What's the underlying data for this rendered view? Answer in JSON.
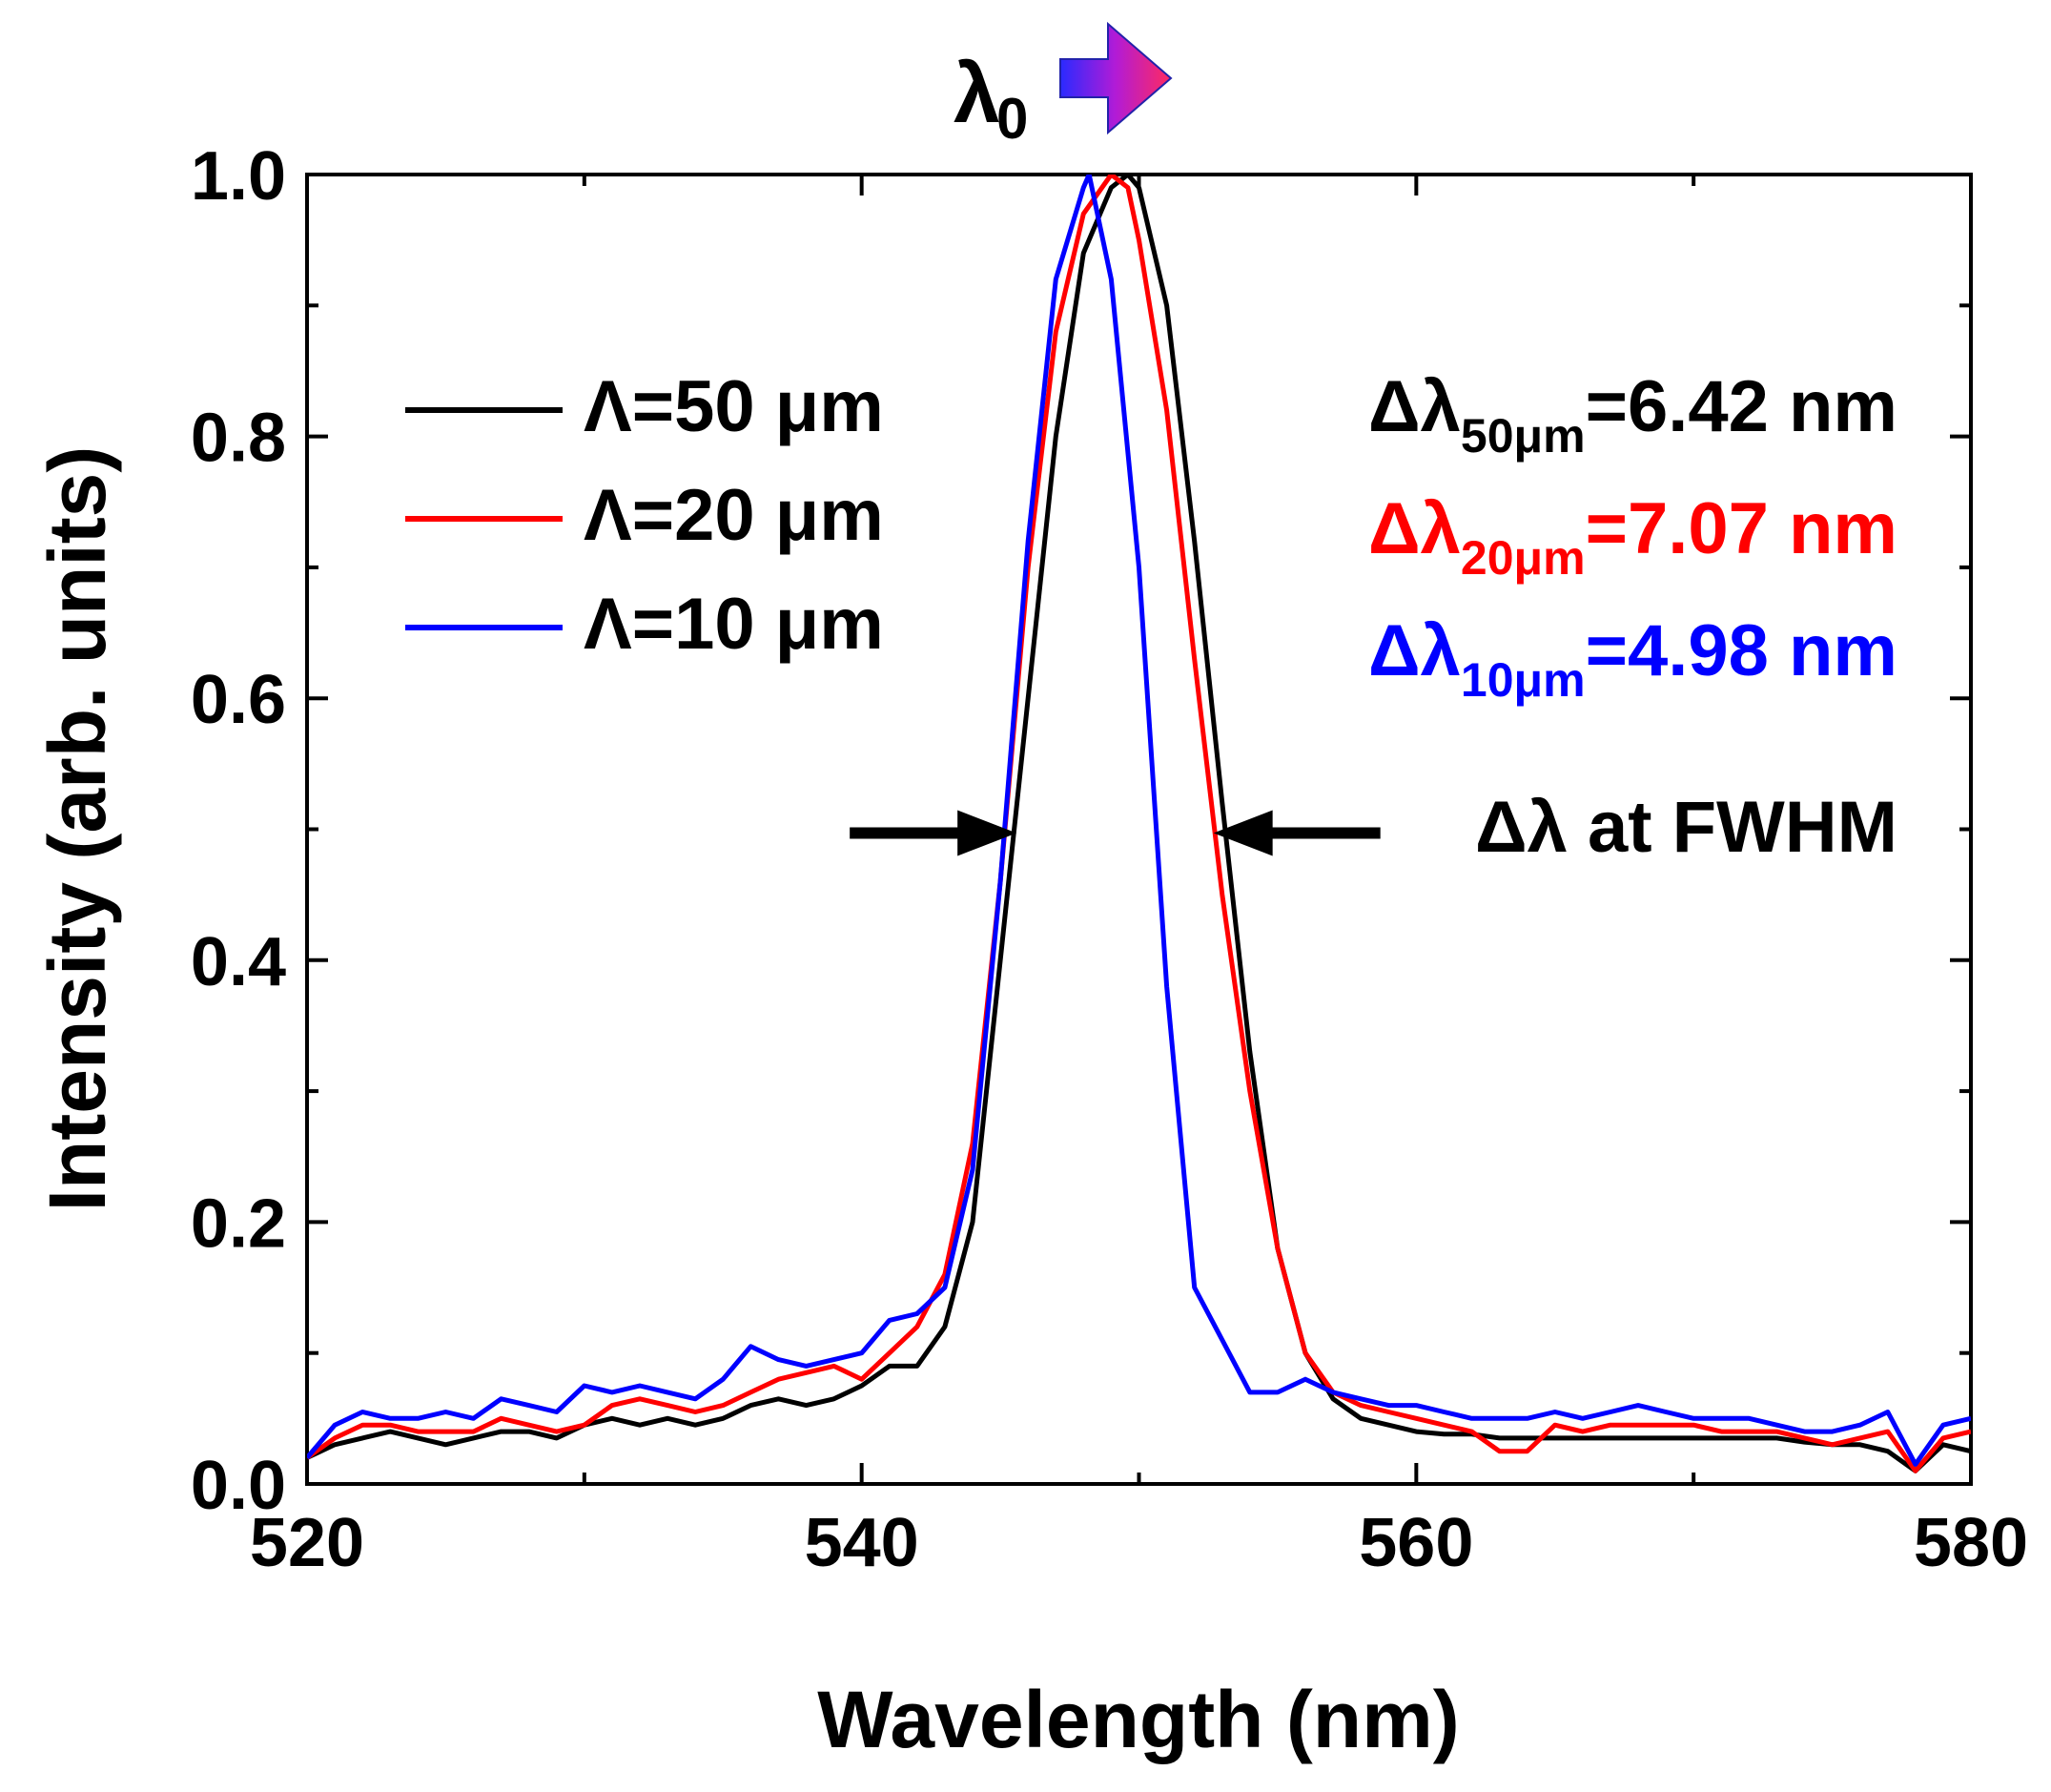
{
  "chart_data": {
    "type": "line",
    "xlabel": "Wavelength (nm)",
    "ylabel": "Intensity (arb. units)",
    "xlim": [
      520,
      580
    ],
    "ylim": [
      0,
      1.0
    ],
    "xticks": [
      520,
      540,
      560,
      580
    ],
    "xtick_labels": [
      "520",
      "540",
      "560",
      "580"
    ],
    "yticks": [
      0.0,
      0.2,
      0.4,
      0.6,
      0.8,
      1.0
    ],
    "ytick_labels": [
      "0.0",
      "0.2",
      "0.4",
      "0.6",
      "0.8",
      "1.0"
    ],
    "grid": false,
    "legend_position": "upper-left",
    "series": [
      {
        "name": "Λ=50 μm",
        "color": "#000000",
        "x": [
          520,
          521,
          522,
          523,
          524,
          525,
          526,
          527,
          528,
          529,
          530,
          531,
          532,
          533,
          534,
          535,
          536,
          537,
          538,
          539,
          540,
          541,
          542,
          543,
          544,
          545,
          546,
          547,
          548,
          549,
          549.6,
          550,
          551,
          552,
          553,
          554,
          555,
          556,
          557,
          558,
          559,
          560,
          561,
          562,
          563,
          564,
          565,
          566,
          567,
          568,
          569,
          570,
          571,
          572,
          573,
          574,
          575,
          576,
          577,
          578,
          579,
          580
        ],
        "y": [
          0.02,
          0.03,
          0.035,
          0.04,
          0.035,
          0.03,
          0.035,
          0.04,
          0.04,
          0.035,
          0.045,
          0.05,
          0.045,
          0.05,
          0.045,
          0.05,
          0.06,
          0.065,
          0.06,
          0.065,
          0.075,
          0.09,
          0.09,
          0.12,
          0.2,
          0.4,
          0.6,
          0.8,
          0.94,
          0.99,
          1.0,
          0.99,
          0.9,
          0.72,
          0.52,
          0.33,
          0.18,
          0.1,
          0.065,
          0.05,
          0.045,
          0.04,
          0.038,
          0.038,
          0.035,
          0.035,
          0.035,
          0.035,
          0.035,
          0.035,
          0.035,
          0.035,
          0.035,
          0.035,
          0.035,
          0.032,
          0.03,
          0.03,
          0.025,
          0.01,
          0.03,
          0.025
        ]
      },
      {
        "name": "Λ=20 μm",
        "color": "#ff0000",
        "x": [
          520,
          521,
          522,
          523,
          524,
          525,
          526,
          527,
          528,
          529,
          530,
          531,
          532,
          533,
          534,
          535,
          536,
          537,
          538,
          539,
          540,
          541,
          542,
          543,
          544,
          545,
          546,
          547,
          548,
          549,
          549.6,
          550,
          551,
          552,
          553,
          554,
          555,
          556,
          557,
          558,
          559,
          560,
          561,
          562,
          563,
          564,
          565,
          566,
          567,
          568,
          569,
          570,
          571,
          572,
          573,
          574,
          575,
          576,
          577,
          578,
          579,
          580
        ],
        "y": [
          0.02,
          0.035,
          0.045,
          0.045,
          0.04,
          0.04,
          0.04,
          0.05,
          0.045,
          0.04,
          0.045,
          0.06,
          0.065,
          0.06,
          0.055,
          0.06,
          0.07,
          0.08,
          0.085,
          0.09,
          0.08,
          0.1,
          0.12,
          0.16,
          0.26,
          0.46,
          0.7,
          0.88,
          0.97,
          1.0,
          0.99,
          0.95,
          0.82,
          0.63,
          0.45,
          0.3,
          0.18,
          0.1,
          0.07,
          0.06,
          0.055,
          0.05,
          0.045,
          0.04,
          0.025,
          0.025,
          0.045,
          0.04,
          0.045,
          0.045,
          0.045,
          0.045,
          0.04,
          0.04,
          0.04,
          0.035,
          0.03,
          0.035,
          0.04,
          0.01,
          0.035,
          0.04
        ]
      },
      {
        "name": "Λ=10 μm",
        "color": "#0000ff",
        "x": [
          520,
          521,
          522,
          523,
          524,
          525,
          526,
          527,
          528,
          529,
          530,
          531,
          532,
          533,
          534,
          535,
          536,
          537,
          538,
          539,
          540,
          541,
          542,
          543,
          544,
          545,
          546,
          547,
          548,
          548.2,
          549,
          550,
          551,
          552,
          553,
          554,
          555,
          556,
          557,
          558,
          559,
          560,
          561,
          562,
          563,
          564,
          565,
          566,
          567,
          568,
          569,
          570,
          571,
          572,
          573,
          574,
          575,
          576,
          577,
          578,
          579,
          580
        ],
        "y": [
          0.02,
          0.045,
          0.055,
          0.05,
          0.05,
          0.055,
          0.05,
          0.065,
          0.06,
          0.055,
          0.075,
          0.07,
          0.075,
          0.07,
          0.065,
          0.08,
          0.105,
          0.095,
          0.09,
          0.095,
          0.1,
          0.125,
          0.13,
          0.15,
          0.24,
          0.46,
          0.72,
          0.92,
          0.99,
          1.0,
          0.92,
          0.7,
          0.38,
          0.15,
          0.11,
          0.07,
          0.07,
          0.08,
          0.07,
          0.065,
          0.06,
          0.06,
          0.055,
          0.05,
          0.05,
          0.05,
          0.055,
          0.05,
          0.055,
          0.06,
          0.055,
          0.05,
          0.05,
          0.05,
          0.045,
          0.04,
          0.04,
          0.045,
          0.055,
          0.015,
          0.045,
          0.05
        ]
      }
    ],
    "annotations": {
      "lambda0_label": "λ",
      "lambda0_sub": "0",
      "fwhm_label": "Δλ at FWHM",
      "fwhm_y": 0.5,
      "fwhm_left_x": 546,
      "fwhm_right_x": 552,
      "widths": [
        {
          "prefix": "Δλ",
          "sub": "50μm",
          "value": "=6.42 nm",
          "color": "#000000"
        },
        {
          "prefix": "Δλ",
          "sub": "20μm",
          "value": "=7.07 nm",
          "color": "#ff0000"
        },
        {
          "prefix": "Δλ",
          "sub": "10μm",
          "value": "=4.98 nm",
          "color": "#0000ff"
        }
      ]
    }
  }
}
